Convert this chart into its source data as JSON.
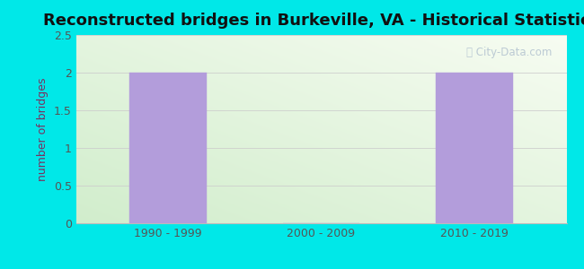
{
  "title": "Reconstructed bridges in Burkeville, VA - Historical Statistics",
  "categories": [
    "1990 - 1999",
    "2000 - 2009",
    "2010 - 2019"
  ],
  "values": [
    2,
    0,
    2
  ],
  "bar_color": "#b39ddb",
  "bar_edge_color": "#b39ddb",
  "ylabel": "number of bridges",
  "ylim": [
    0,
    2.5
  ],
  "yticks": [
    0,
    0.5,
    1,
    1.5,
    2,
    2.5
  ],
  "title_fontsize": 13,
  "ylabel_fontsize": 9,
  "tick_fontsize": 9,
  "background_outer": "#00e8e8",
  "grid_color": "#cccccc",
  "watermark_text": "City-Data.com",
  "watermark_color": "#aabbcc",
  "title_color": "#111111",
  "axis_label_color": "#7a3060",
  "tick_color": "#7a3060"
}
